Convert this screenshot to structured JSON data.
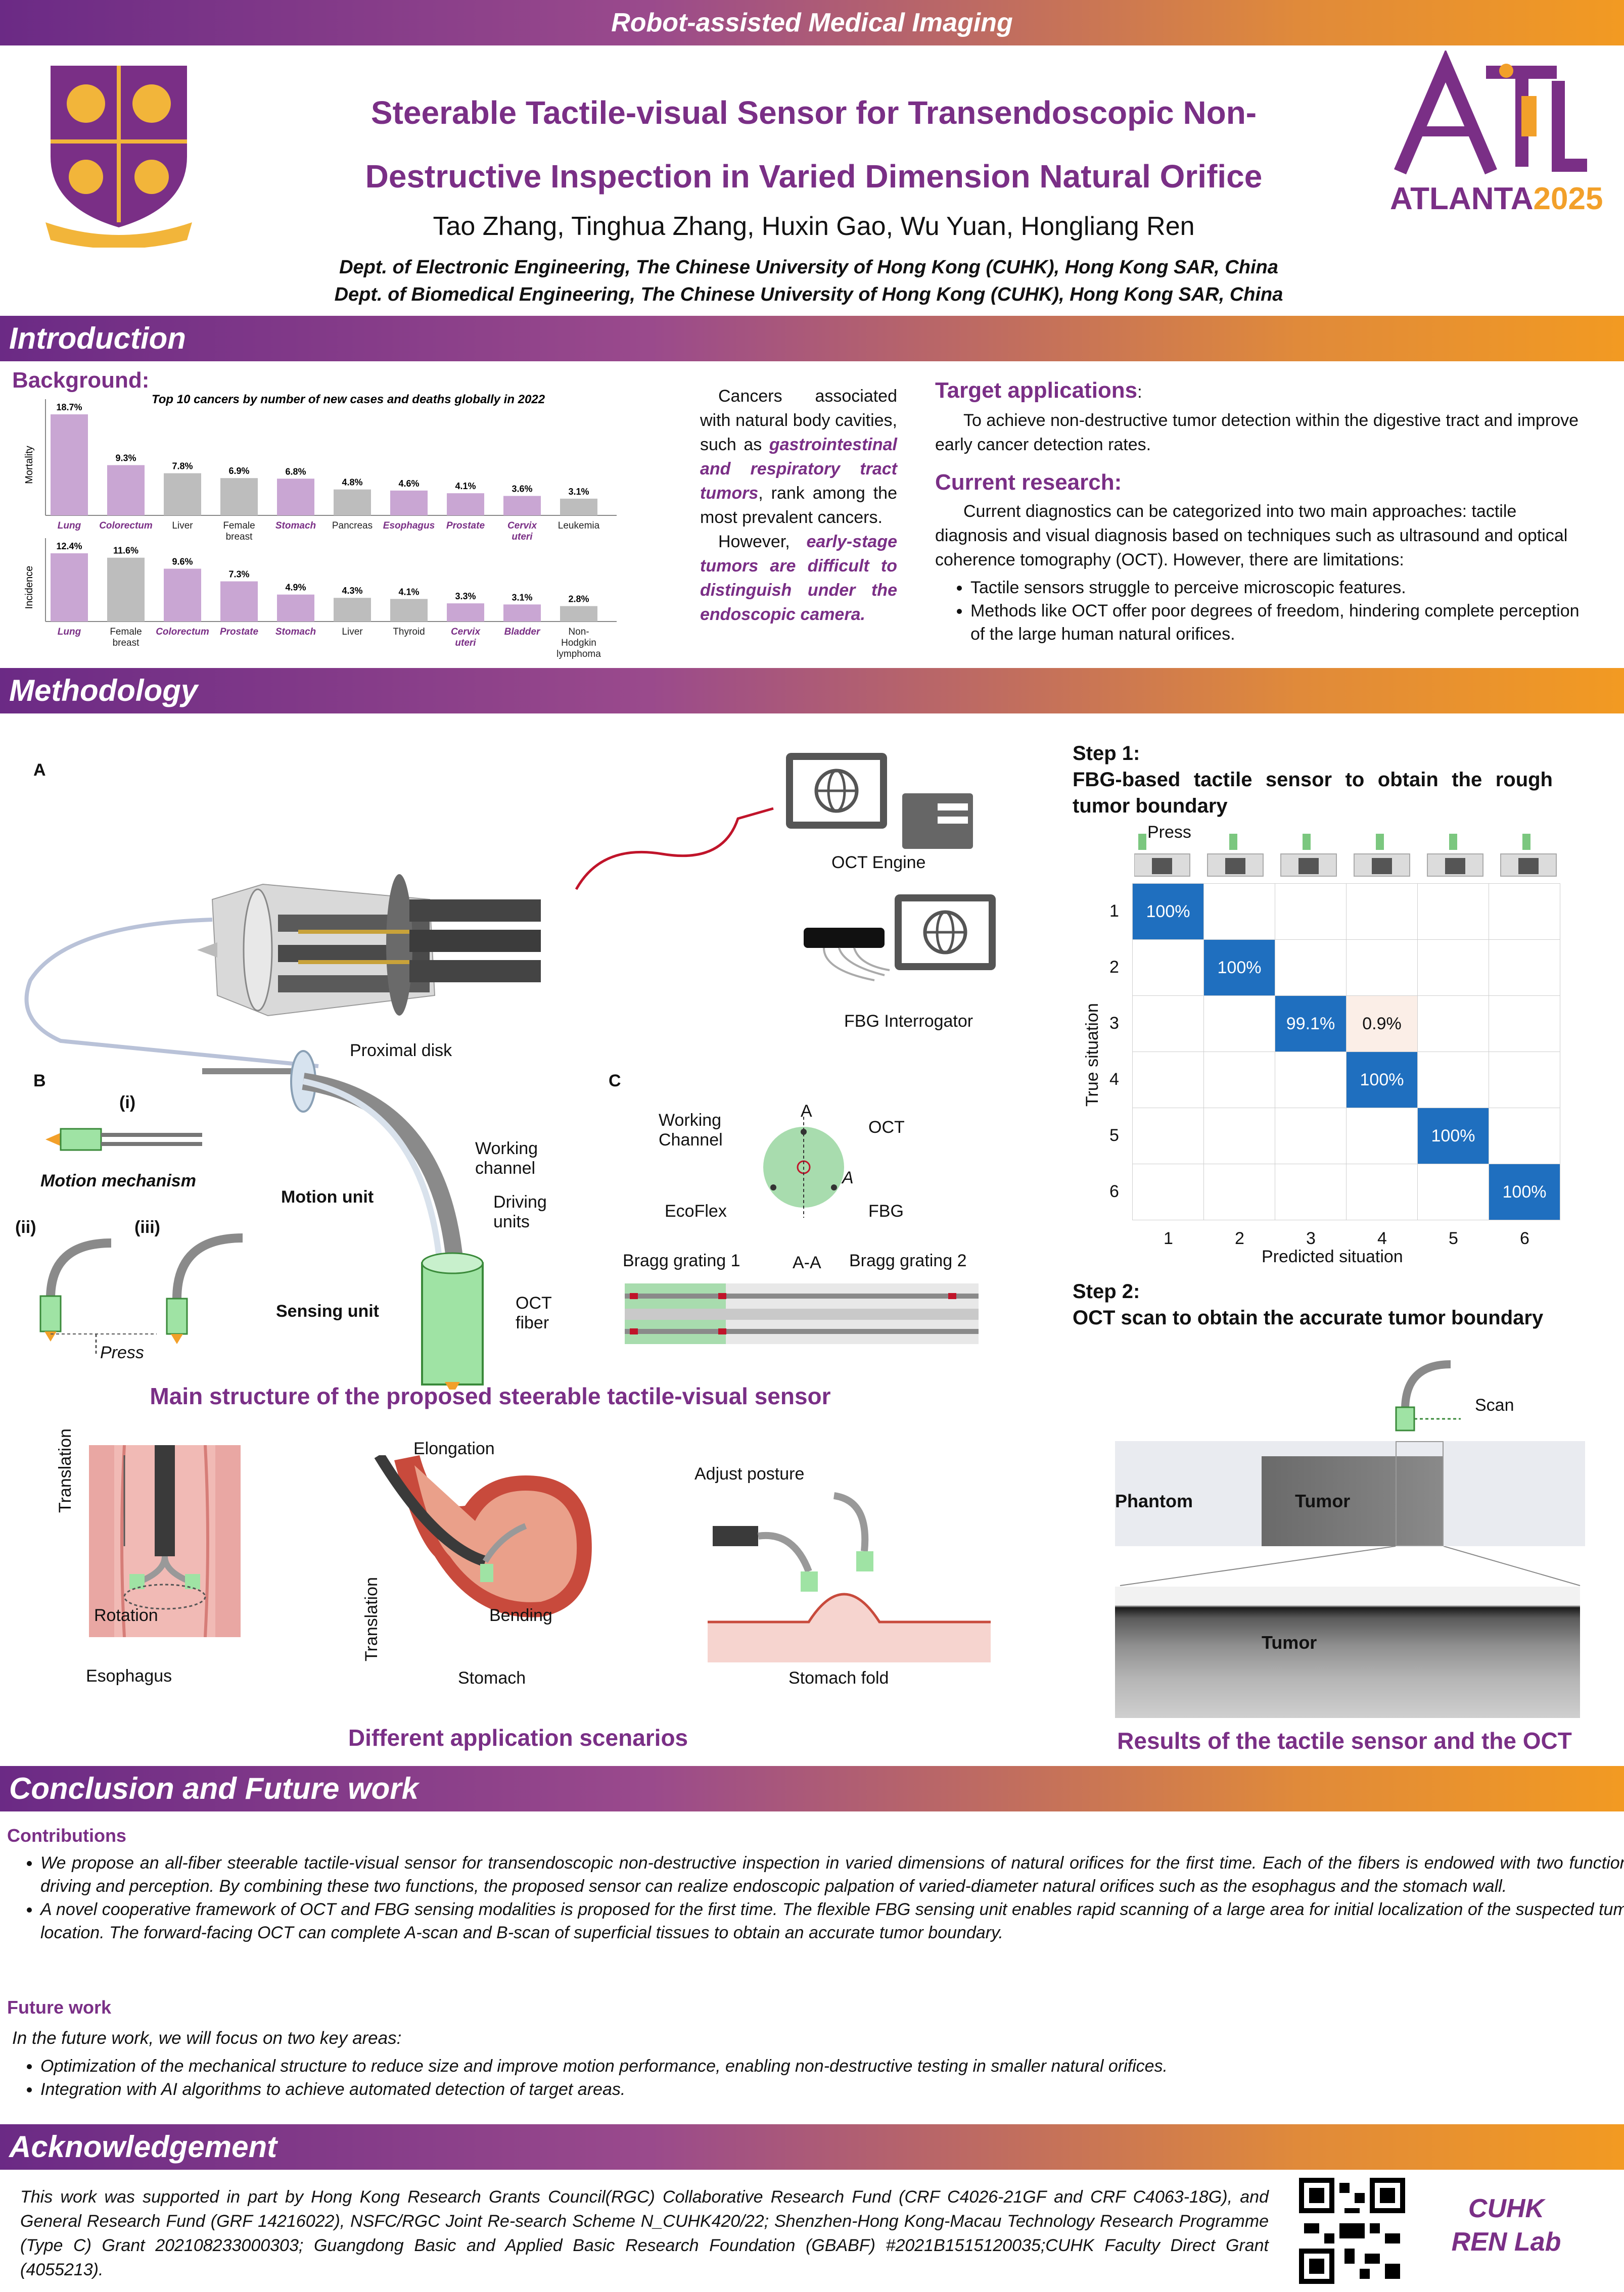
{
  "banner": "Robot-assisted Medical Imaging",
  "title_line1": "Steerable Tactile-visual Sensor for Transendoscopic Non-",
  "title_line2": "Destructive Inspection in Varied Dimension Natural Orifice",
  "authors": "Tao Zhang, Tinghua Zhang, Huxin Gao, Wu Yuan, Hongliang Ren",
  "affiliation1": "Dept. of Electronic Engineering, The Chinese University of Hong Kong (CUHK), Hong Kong SAR, China",
  "affiliation2": "Dept. of Biomedical Engineering, The Chinese University of Hong Kong (CUHK), Hong Kong SAR, China",
  "conference": "ATLANTA",
  "conference_year": "2025",
  "sections": {
    "introduction": "Introduction",
    "methodology": "Methodology",
    "conclusion": "Conclusion and Future work",
    "acknowledgement": "Acknowledgement"
  },
  "intro": {
    "background_heading": "Background:",
    "chart_title": "Top 10 cancers by number of new cases and deaths globally in 2022",
    "mid_p1_a": "Cancers associated with natural body cavities, such as ",
    "mid_p1_em": "gastrointestinal and respiratory tract tumors",
    "mid_p1_b": ", rank among the most prevalent cancers.",
    "mid_p2_a": "However, ",
    "mid_p2_em": "early-stage tumors are difficult to distinguish under the endoscopic camera.",
    "target_heading": "Target applications",
    "target_colon": ":",
    "target_text": "To achieve non-destructive tumor detection within the digestive tract and improve early cancer detection rates.",
    "current_heading": "Current research:",
    "current_text": "Current diagnostics can be categorized into two main approaches: tactile diagnosis and visual diagnosis based on techniques such as ultrasound and optical coherence tomography (OCT). However, there are limitations:",
    "bullets": [
      "Tactile sensors struggle to perceive microscopic features.",
      "Methods like OCT offer poor degrees of freedom, hindering complete perception of the large human natural orifices."
    ]
  },
  "chart_data": [
    {
      "type": "bar",
      "title": "Top 10 cancers by number of new cases and deaths globally in 2022",
      "ylabel": "Mortality",
      "categories": [
        "Lung",
        "Colorectum",
        "Liver",
        "Female breast",
        "Stomach",
        "Pancreas",
        "Esophagus",
        "Prostate",
        "Cervix uteri",
        "Leukemia"
      ],
      "values": [
        18.7,
        9.3,
        7.8,
        6.9,
        6.8,
        4.8,
        4.6,
        4.1,
        3.6,
        3.1
      ],
      "value_labels": [
        "18.7%",
        "9.3%",
        "7.8%",
        "6.9%",
        "6.8%",
        "4.8%",
        "4.6%",
        "4.1%",
        "3.6%",
        "3.1%"
      ],
      "highlight": [
        true,
        true,
        false,
        false,
        true,
        false,
        true,
        true,
        true,
        false
      ],
      "colors": {
        "highlight": "#c9a6d3",
        "normal": "#bdbdbd",
        "highlight_label": "#7a2f86"
      }
    },
    {
      "type": "bar",
      "ylabel": "Incidence",
      "categories": [
        "Lung",
        "Female breast",
        "Colorectum",
        "Prostate",
        "Stomach",
        "Liver",
        "Thyroid",
        "Cervix uteri",
        "Bladder",
        "Non-Hodgkin lymphoma"
      ],
      "values": [
        12.4,
        11.6,
        9.6,
        7.3,
        4.9,
        4.3,
        4.1,
        3.3,
        3.1,
        2.8
      ],
      "value_labels": [
        "12.4%",
        "11.6%",
        "9.6%",
        "7.3%",
        "4.9%",
        "4.3%",
        "4.1%",
        "3.3%",
        "3.1%",
        "2.8%"
      ],
      "highlight": [
        true,
        false,
        true,
        true,
        true,
        false,
        false,
        true,
        true,
        false
      ],
      "colors": {
        "highlight": "#c9a6d3",
        "normal": "#bdbdbd",
        "highlight_label": "#7a2f86"
      }
    },
    {
      "type": "heatmap",
      "xlabel": "Predicted situation",
      "ylabel": "True situation",
      "x_ticks": [
        "1",
        "2",
        "3",
        "4",
        "5",
        "6"
      ],
      "y_ticks": [
        "1",
        "2",
        "3",
        "4",
        "5",
        "6"
      ],
      "cells": [
        {
          "row": 1,
          "col": 1,
          "value": "100%"
        },
        {
          "row": 2,
          "col": 2,
          "value": "100%"
        },
        {
          "row": 3,
          "col": 3,
          "value": "99.1%"
        },
        {
          "row": 3,
          "col": 4,
          "value": "0.9%"
        },
        {
          "row": 4,
          "col": 4,
          "value": "100%"
        },
        {
          "row": 5,
          "col": 5,
          "value": "100%"
        },
        {
          "row": 6,
          "col": 6,
          "value": "100%"
        }
      ]
    }
  ],
  "method": {
    "fig_a": "A",
    "fig_b": "B",
    "fig_c": "C",
    "oct_engine": "OCT Engine",
    "fbg_interrogator": "FBG Interrogator",
    "proximal_disk": "Proximal disk",
    "working_channel": "Working channel",
    "driving_units": "Driving units",
    "oct_fiber": "OCT fiber",
    "motion_unit": "Motion unit",
    "sensing_unit": "Sensing unit",
    "sub_i": "(i)",
    "sub_ii": "(ii)",
    "sub_iii": "(iii)",
    "motion_mechanism": "Motion mechanism",
    "press": "Press",
    "c_working_channel": "Working Channel",
    "c_a_top": "A",
    "c_a_right": "A",
    "c_oct": "OCT",
    "c_ecoflex": "EcoFlex",
    "c_fbg": "FBG",
    "bragg1": "Bragg grating 1",
    "aa": "A-A",
    "bragg2": "Bragg grating 2",
    "caption_main": "Main structure of the proposed steerable tactile-visual sensor",
    "translation": "Translation",
    "rotation": "Rotation",
    "esophagus": "Esophagus",
    "elongation": "Elongation",
    "bending": "Bending",
    "stomach": "Stomach",
    "adjust_posture": "Adjust posture",
    "stomach_fold": "Stomach fold",
    "caption_scen": "Different application scenarios",
    "step1_title": "Step 1:",
    "step1_text": "FBG-based tactile sensor to obtain the rough tumor boundary",
    "step1_press": "Press",
    "step2_title": "Step 2:",
    "step2_text": "OCT scan to obtain the accurate tumor boundary",
    "scan": "Scan",
    "phantom": "Phantom",
    "tumor1": "Tumor",
    "tumor2": "Tumor",
    "caption_results": "Results of the tactile sensor and the OCT"
  },
  "conclusion": {
    "contributions_heading": "Contributions",
    "contributions": [
      "We propose an all-fiber steerable tactile-visual sensor for transendoscopic non-destructive inspection in varied dimensions of natural orifices for the first time. Each of the fibers is endowed with two functions: driving and perception. By combining these two functions, the proposed sensor can realize endoscopic palpation of varied-diameter natural orifices such as the esophagus and the stomach wall.",
      "A novel cooperative framework of OCT and FBG sensing modalities is proposed for the first time. The flexible FBG sensing unit enables rapid scanning of a large area for initial localization of the suspected tumor location. The forward-facing OCT can complete A-scan and B-scan of superficial tissues to obtain an accurate tumor boundary."
    ],
    "future_heading": "Future work",
    "future_intro": "In the future work, we will focus on two key areas:",
    "future": [
      "Optimization of the mechanical structure to reduce size and improve motion performance, enabling non-destructive testing in smaller natural orifices.",
      "Integration with AI algorithms to achieve automated detection of target areas."
    ]
  },
  "ack": {
    "text": "This work was supported in part by Hong Kong Research Grants Council(RGC) Collaborative Research Fund (CRF C4026-21GF and CRF C4063-18G), and General Research Fund (GRF 14216022), NSFC/RGC Joint Re-search Scheme N_CUHK420/22; Shenzhen-Hong Kong-Macau Technology Research Programme (Type C) Grant 202108233000303; Guangdong Basic and Applied Basic Research Foundation (GBABF) #2021B1515120035;CUHK Faculty Direct Grant (4055213).",
    "lab_line1": "CUHK",
    "lab_line2": "REN Lab"
  }
}
